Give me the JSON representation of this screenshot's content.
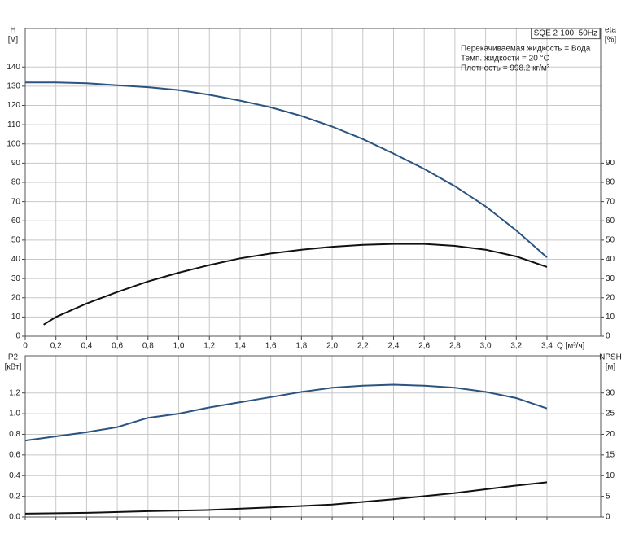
{
  "chart_data": [
    {
      "type": "line",
      "title": "SQE 2-100, 50Hz",
      "annotations": [
        "Перекачиваемая жидкость = Вода",
        "Темп. жидкости = 20 °C",
        "Плотность = 998.2 кг/м³"
      ],
      "xlabel": "Q [м³/ч]",
      "ylabel": "[м]",
      "y2label": "[%]",
      "xtick_labels": true,
      "grid": true,
      "xlim": [
        0,
        3.75
      ],
      "xticks": [
        0,
        {
          "value": 0.2,
          "label": "0,2"
        },
        {
          "value": 0.4,
          "label": "0,4"
        },
        {
          "value": 0.6,
          "label": "0,6"
        },
        {
          "value": 0.8,
          "label": "0,8"
        },
        {
          "value": 1.0,
          "label": "1,0"
        },
        {
          "value": 1.2,
          "label": "1,2"
        },
        {
          "value": 1.4,
          "label": "1,4"
        },
        {
          "value": 1.6,
          "label": "1,6"
        },
        {
          "value": 1.8,
          "label": "1,8"
        },
        {
          "value": 2.0,
          "label": "2,0"
        },
        {
          "value": 2.2,
          "label": "2,2"
        },
        {
          "value": 2.4,
          "label": "2,4"
        },
        {
          "value": 2.6,
          "label": "2,6"
        },
        {
          "value": 2.8,
          "label": "2,8"
        },
        {
          "value": 3.0,
          "label": "3,0"
        },
        {
          "value": 3.2,
          "label": "3,2"
        },
        {
          "value": 3.4,
          "label": "3,4"
        }
      ],
      "ylim": [
        0,
        160
      ],
      "yticks": [
        0,
        10,
        20,
        30,
        40,
        50,
        60,
        70,
        80,
        90,
        100,
        110,
        120,
        130,
        140
      ],
      "y2lim": [
        0,
        160
      ],
      "y2ticks": [
        0,
        10,
        20,
        30,
        40,
        50,
        60,
        70,
        80,
        90
      ],
      "series": [
        {
          "name": "H",
          "color": "#2b5480",
          "x": [
            0,
            0.2,
            0.4,
            0.6,
            0.8,
            1.0,
            1.2,
            1.4,
            1.6,
            1.8,
            2.0,
            2.2,
            2.4,
            2.6,
            2.8,
            3.0,
            3.2,
            3.4
          ],
          "values": [
            132,
            132,
            131.5,
            130.5,
            129.5,
            128,
            125.5,
            122.5,
            119,
            114.5,
            109,
            102.5,
            95,
            87,
            78,
            67.5,
            55,
            41
          ]
        },
        {
          "name": "eta",
          "color": "#111111",
          "axis": "y2",
          "x": [
            0.12,
            0.2,
            0.4,
            0.6,
            0.8,
            1.0,
            1.2,
            1.4,
            1.6,
            1.8,
            2.0,
            2.2,
            2.4,
            2.6,
            2.8,
            3.0,
            3.2,
            3.4
          ],
          "values": [
            6,
            10,
            17,
            23,
            28.5,
            33,
            37,
            40.5,
            43,
            45,
            46.5,
            47.5,
            48,
            48,
            47,
            45,
            41.5,
            36
          ]
        }
      ]
    },
    {
      "type": "line",
      "ylabel": "[кВт]",
      "y2label": "[м]",
      "xtick_labels": false,
      "grid": true,
      "xlim": [
        0,
        3.75
      ],
      "xticks": [
        0,
        0.2,
        0.4,
        0.6,
        0.8,
        1.0,
        1.2,
        1.4,
        1.6,
        1.8,
        2.0,
        2.2,
        2.4,
        2.6,
        2.8,
        3.0,
        3.2,
        3.4
      ],
      "ylim": [
        0,
        1.56
      ],
      "yticks": [
        {
          "value": 0,
          "label": "0.0"
        },
        0.2,
        0.4,
        0.6,
        0.8,
        {
          "value": 1.0,
          "label": "1.0"
        },
        1.2
      ],
      "y2lim": [
        0,
        39
      ],
      "y2ticks": [
        0,
        5,
        10,
        15,
        20,
        25,
        30
      ],
      "series": [
        {
          "name": "P2",
          "color": "#2b5480",
          "x": [
            0,
            0.2,
            0.4,
            0.6,
            0.8,
            1.0,
            1.2,
            1.4,
            1.6,
            1.8,
            2.0,
            2.2,
            2.4,
            2.6,
            2.8,
            3.0,
            3.2,
            3.4
          ],
          "values": [
            0.74,
            0.78,
            0.82,
            0.87,
            0.96,
            1.0,
            1.06,
            1.11,
            1.16,
            1.21,
            1.25,
            1.27,
            1.28,
            1.27,
            1.25,
            1.21,
            1.15,
            1.05
          ]
        },
        {
          "name": "NPSH",
          "color": "#111111",
          "axis": "y2",
          "x": [
            0,
            0.4,
            0.8,
            1.2,
            1.6,
            2.0,
            2.4,
            2.8,
            3.0,
            3.2,
            3.4
          ],
          "values": [
            0.8,
            1.0,
            1.4,
            1.7,
            2.3,
            3.0,
            4.3,
            5.8,
            6.7,
            7.6,
            8.4
          ]
        }
      ]
    }
  ]
}
